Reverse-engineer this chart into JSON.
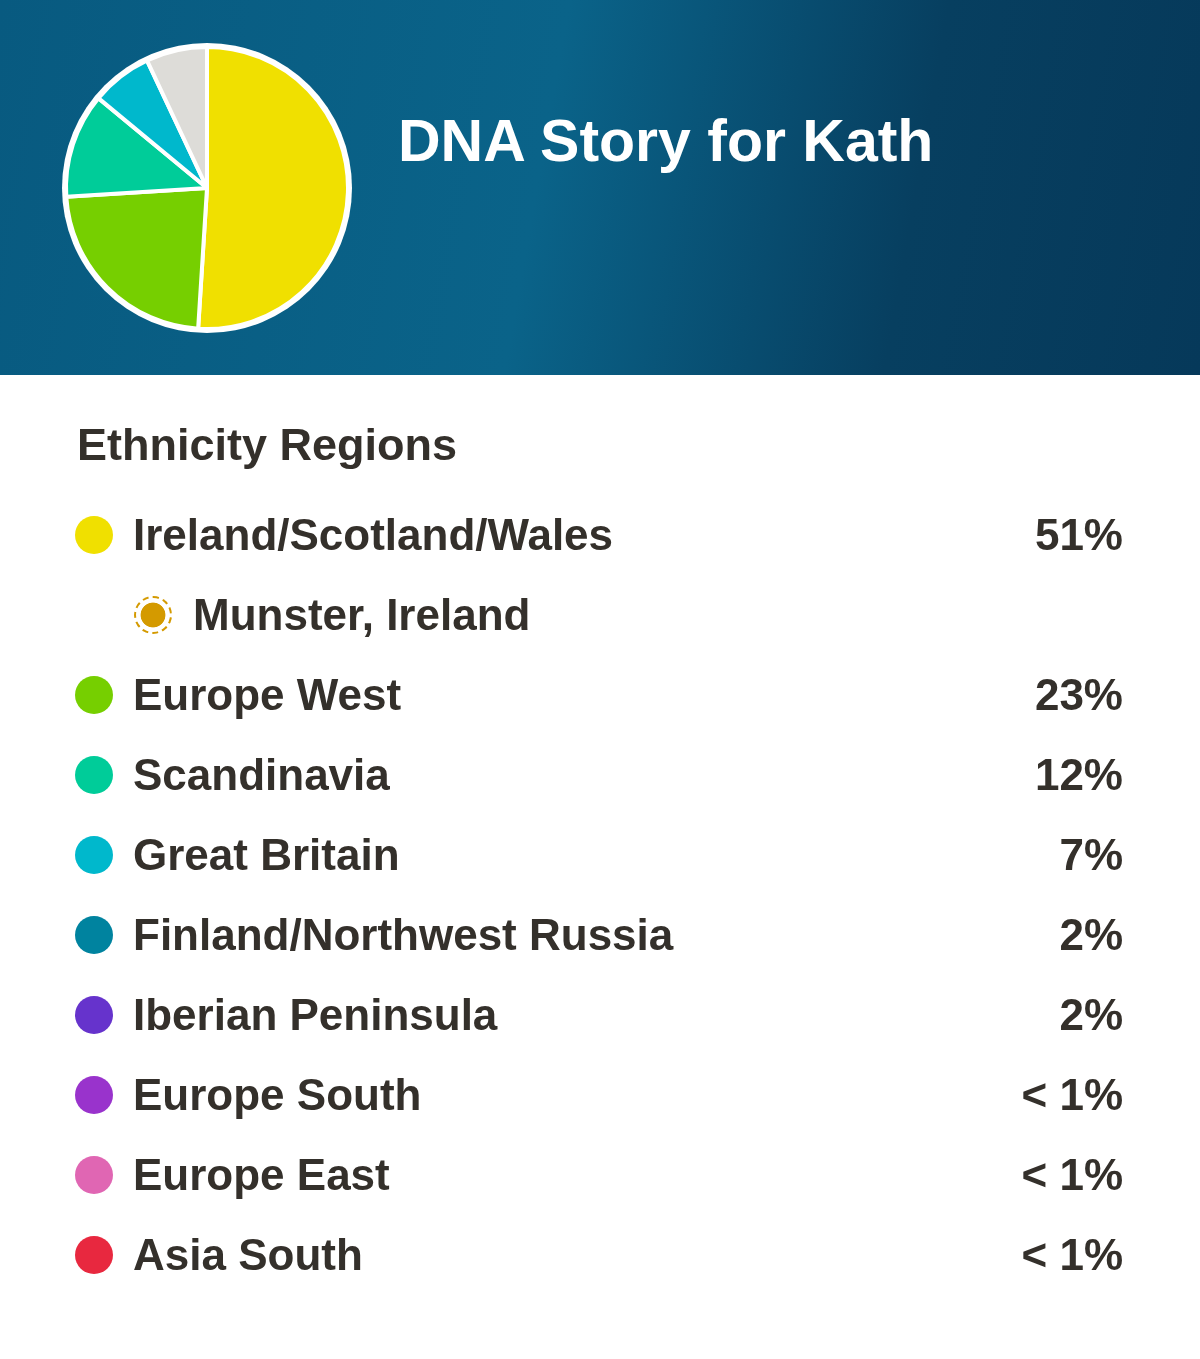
{
  "chart_data": [
    {
      "type": "pie",
      "title": "DNA Story for Kath",
      "categories": [
        null,
        null,
        null,
        null,
        null
      ],
      "values": [
        51,
        23,
        12,
        7,
        7
      ],
      "colors": [
        "#f0e000",
        "#76cf00",
        "#00cc99",
        "#00b8cc",
        "#dddcd8"
      ]
    },
    {
      "type": "other",
      "title": "Ethnicity Regions",
      "categories": [
        "Ireland/Scotland/Wales",
        "Munster, Ireland",
        "Europe West",
        "Scandinavia",
        "Great Britain",
        "Finland/Northwest Russia",
        "Iberian Peninsula",
        "Europe South",
        "Europe East",
        "Asia South"
      ],
      "colors": [
        "#f0e000",
        "#d49a00",
        "#76cf00",
        "#00cc99",
        "#00b8cc",
        "#00839f",
        "#6633cc",
        "#9933cc",
        "#e066b3",
        "#e8283f"
      ],
      "value_labels": [
        "51%",
        null,
        "23%",
        "12%",
        "7%",
        "2%",
        "2%",
        "< 1%",
        "< 1%",
        "< 1%"
      ]
    }
  ]
}
